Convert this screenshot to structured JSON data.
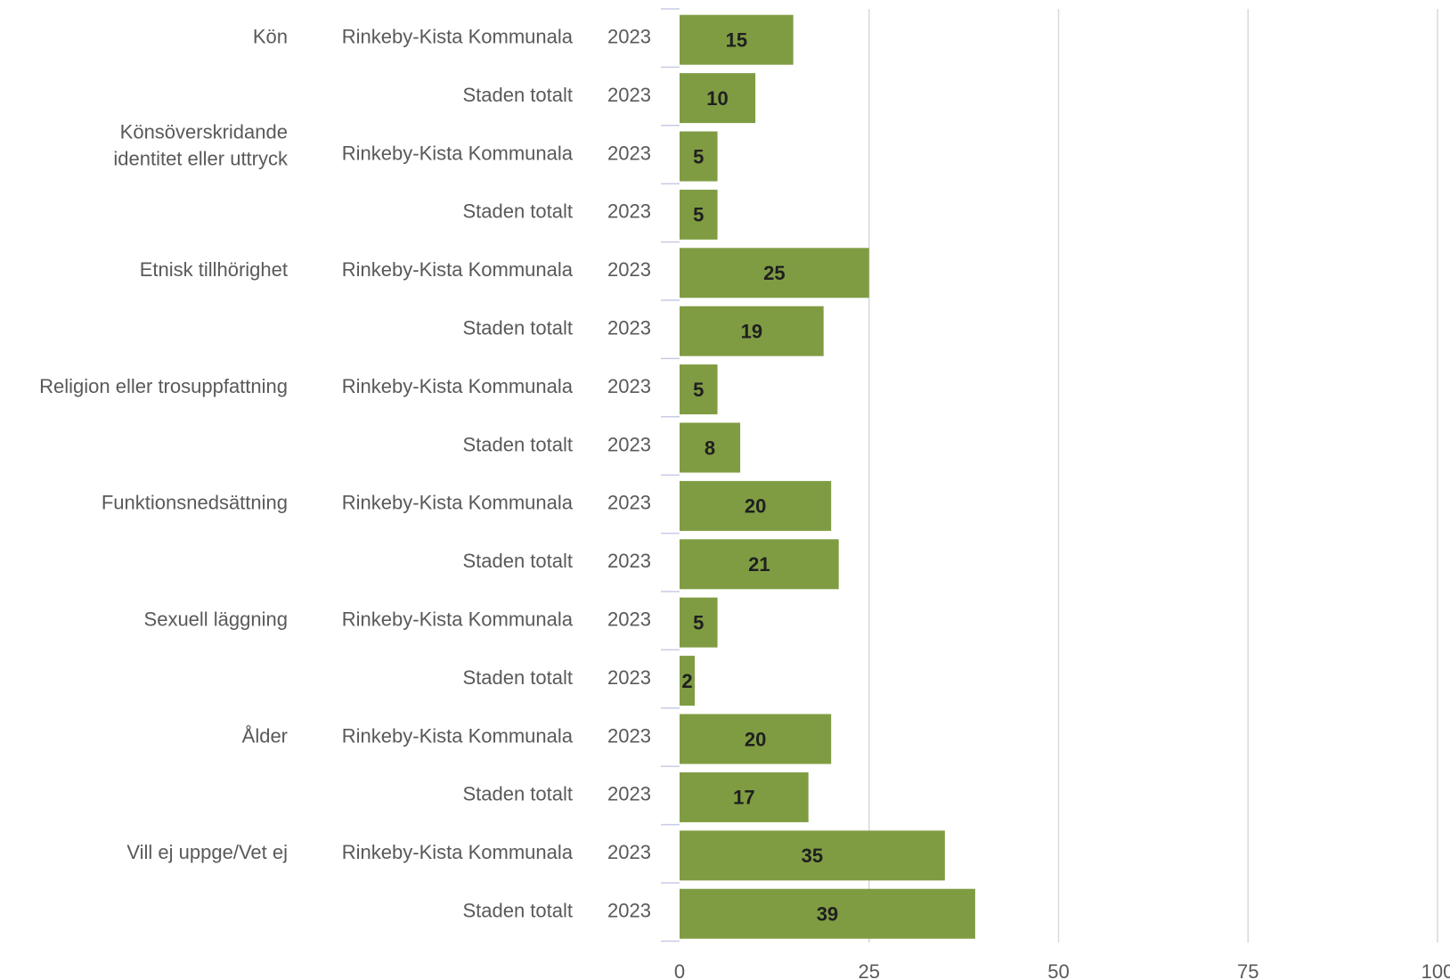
{
  "chart_data": {
    "type": "bar",
    "orientation": "horizontal",
    "xlim": [
      0,
      100
    ],
    "x_ticks": [
      "0",
      "25",
      "50",
      "75",
      "100"
    ],
    "grid": true,
    "bar_color": "#7f9c43",
    "groups": [
      {
        "category": "Kön",
        "rows": [
          {
            "unit": "Rinkeby-Kista Kommunala",
            "year": "2023",
            "value": 15
          },
          {
            "unit": "Staden totalt",
            "year": "2023",
            "value": 10
          }
        ]
      },
      {
        "category": "Könsöverskridande identitet eller uttryck",
        "category_lines": [
          "Könsöverskridande",
          "identitet eller uttryck"
        ],
        "rows": [
          {
            "unit": "Rinkeby-Kista Kommunala",
            "year": "2023",
            "value": 5
          },
          {
            "unit": "Staden totalt",
            "year": "2023",
            "value": 5
          }
        ]
      },
      {
        "category": "Etnisk tillhörighet",
        "rows": [
          {
            "unit": "Rinkeby-Kista Kommunala",
            "year": "2023",
            "value": 25
          },
          {
            "unit": "Staden totalt",
            "year": "2023",
            "value": 19
          }
        ]
      },
      {
        "category": "Religion eller trosuppfattning",
        "rows": [
          {
            "unit": "Rinkeby-Kista Kommunala",
            "year": "2023",
            "value": 5
          },
          {
            "unit": "Staden totalt",
            "year": "2023",
            "value": 8
          }
        ]
      },
      {
        "category": "Funktionsnedsättning",
        "rows": [
          {
            "unit": "Rinkeby-Kista Kommunala",
            "year": "2023",
            "value": 20
          },
          {
            "unit": "Staden totalt",
            "year": "2023",
            "value": 21
          }
        ]
      },
      {
        "category": "Sexuell läggning",
        "rows": [
          {
            "unit": "Rinkeby-Kista Kommunala",
            "year": "2023",
            "value": 5
          },
          {
            "unit": "Staden totalt",
            "year": "2023",
            "value": 2
          }
        ]
      },
      {
        "category": "Ålder",
        "rows": [
          {
            "unit": "Rinkeby-Kista Kommunala",
            "year": "2023",
            "value": 20
          },
          {
            "unit": "Staden totalt",
            "year": "2023",
            "value": 17
          }
        ]
      },
      {
        "category": "Vill ej uppge/Vet ej",
        "rows": [
          {
            "unit": "Rinkeby-Kista Kommunala",
            "year": "2023",
            "value": 35
          },
          {
            "unit": "Staden totalt",
            "year": "2023",
            "value": 39
          }
        ]
      }
    ]
  }
}
